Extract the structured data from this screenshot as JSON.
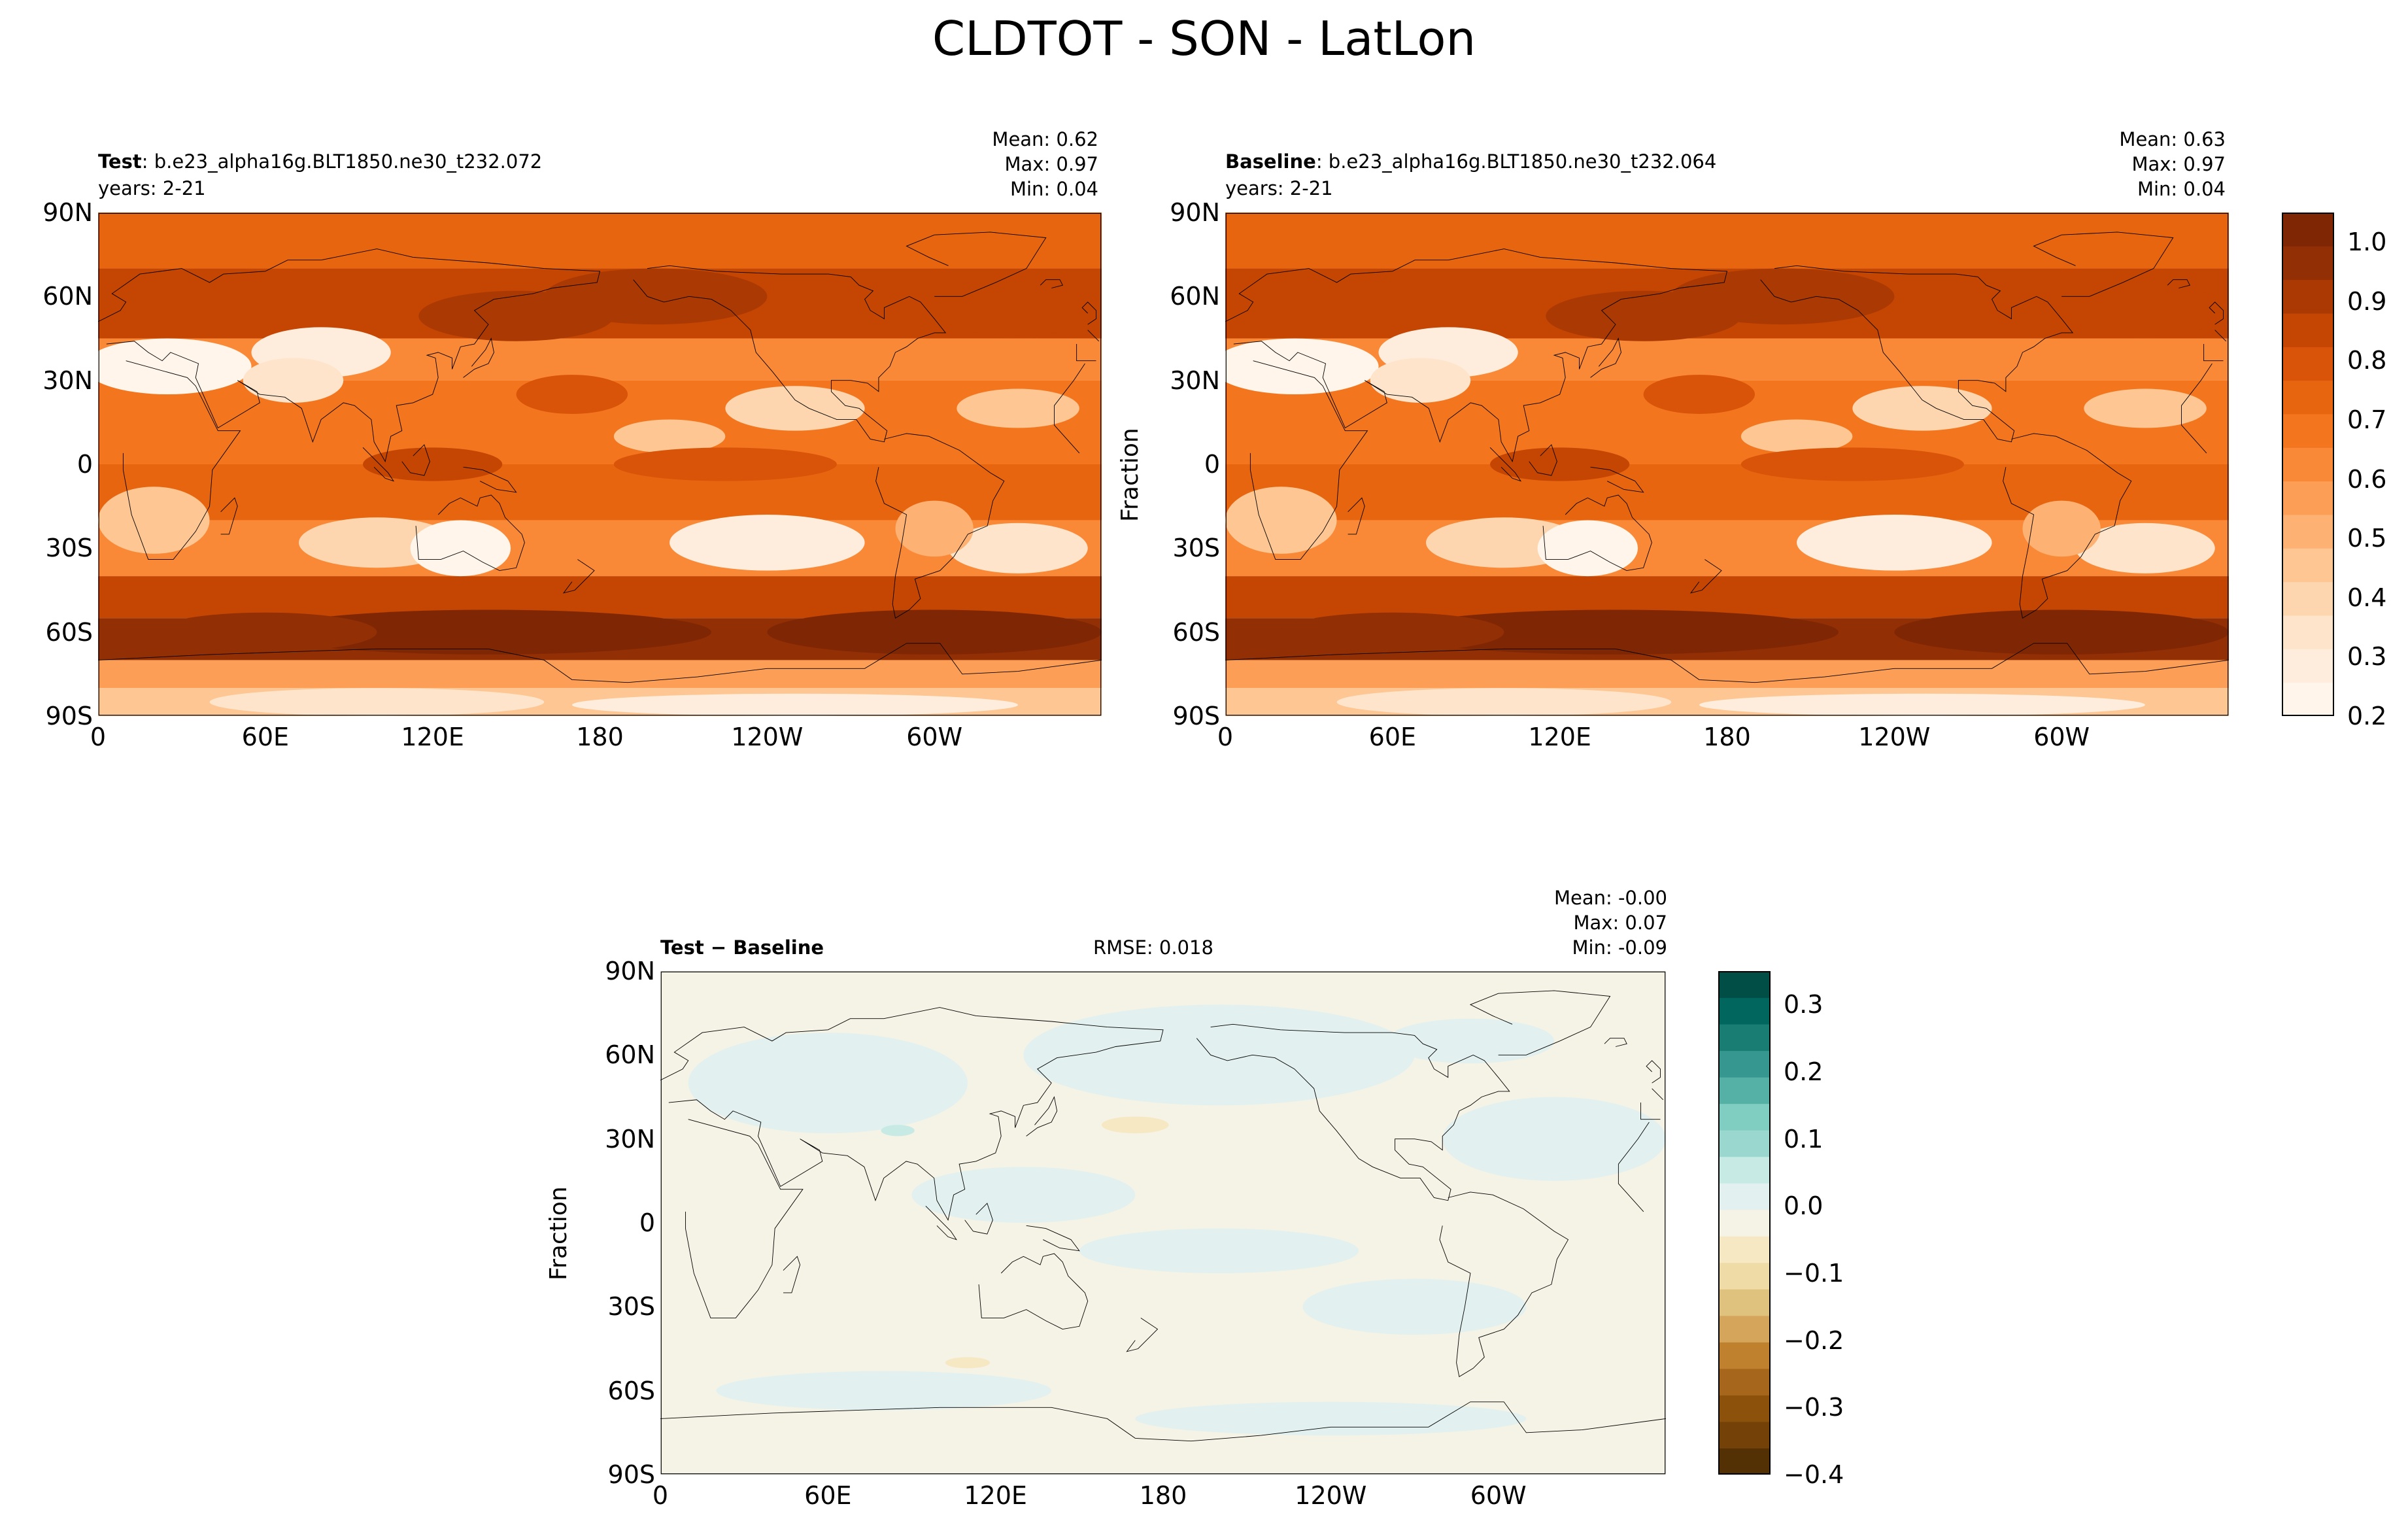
{
  "title": "CLDTOT - SON - LatLon",
  "ylabel": "Fraction",
  "x_ticks": [
    "0",
    "60E",
    "120E",
    "180",
    "120W",
    "60W"
  ],
  "y_ticks": [
    "90N",
    "60N",
    "30N",
    "0",
    "30S",
    "60S",
    "90S"
  ],
  "panels": {
    "test": {
      "label": "Test",
      "case": ": b.e23_alpha16g.BLT1850.ne30_t232.072",
      "years": "years: 2-21",
      "mean": "Mean:  0.62",
      "max": "Max:  0.97",
      "min": "Min:  0.04"
    },
    "baseline": {
      "label": "Baseline",
      "case": ": b.e23_alpha16g.BLT1850.ne30_t232.064",
      "years": "years: 2-21",
      "mean": "Mean:  0.63",
      "max": "Max:  0.97",
      "min": "Min:  0.04"
    },
    "diff": {
      "label": "Test − Baseline",
      "rmse": "RMSE: 0.018",
      "mean": "Mean: -0.00",
      "max": "Max:  0.07",
      "min": "Min: -0.09"
    }
  },
  "colorbars": {
    "main": {
      "ticks": [
        "1.0",
        "0.9",
        "0.8",
        "0.7",
        "0.6",
        "0.5",
        "0.4",
        "0.3",
        "0.2"
      ],
      "colors": [
        "#fff5eb",
        "#feeddc",
        "#fee4ca",
        "#fdd6af",
        "#fdc692",
        "#fdb173",
        "#fd9e56",
        "#fa8937",
        "#f3761f",
        "#e8650f",
        "#d95408",
        "#c54503",
        "#ab3903",
        "#922f04",
        "#7f2704"
      ]
    },
    "diff": {
      "ticks": [
        "0.3",
        "0.2",
        "0.1",
        "0.0",
        "−0.1",
        "−0.2",
        "−0.3",
        "−0.4"
      ],
      "colors": [
        "#543005",
        "#744108",
        "#8c510a",
        "#a6661c",
        "#bf812d",
        "#d4a55b",
        "#dfc27d",
        "#efdba5",
        "#f6e8c3",
        "#f5f2e6",
        "#e2f1ef",
        "#c7eae5",
        "#9ad8cf",
        "#80cdc1",
        "#55b0a6",
        "#35978f",
        "#1a7d74",
        "#01665e",
        "#004e45"
      ]
    }
  },
  "chart_data": [
    {
      "type": "heatmap",
      "title": "Test : b.e23_alpha16g.BLT1850.ne30_t232.072",
      "subtitle": "years: 2-21",
      "variable": "CLDTOT",
      "ylabel": "Fraction",
      "x_ticks": [
        "0",
        "60E",
        "120E",
        "180",
        "120W",
        "60W"
      ],
      "y_ticks": [
        "90N",
        "60N",
        "30N",
        "0",
        "30S",
        "60S",
        "90S"
      ],
      "stats": {
        "mean": 0.62,
        "max": 0.97,
        "min": 0.04
      },
      "colorbar_range": [
        0.2,
        1.05
      ],
      "colormap": "Oranges"
    },
    {
      "type": "heatmap",
      "title": "Baseline : b.e23_alpha16g.BLT1850.ne30_t232.064",
      "subtitle": "years: 2-21",
      "variable": "CLDTOT",
      "ylabel": "Fraction",
      "x_ticks": [
        "0",
        "60E",
        "120E",
        "180",
        "120W",
        "60W"
      ],
      "y_ticks": [
        "90N",
        "60N",
        "30N",
        "0",
        "30S",
        "60S",
        "90S"
      ],
      "stats": {
        "mean": 0.63,
        "max": 0.97,
        "min": 0.04
      },
      "colorbar_range": [
        0.2,
        1.05
      ],
      "colormap": "Oranges"
    },
    {
      "type": "heatmap",
      "title": "Test − Baseline",
      "ylabel": "Fraction",
      "x_ticks": [
        "0",
        "60E",
        "120E",
        "180",
        "120W",
        "60W"
      ],
      "y_ticks": [
        "90N",
        "60N",
        "30N",
        "0",
        "30S",
        "60S",
        "90S"
      ],
      "stats": {
        "mean": -0.0,
        "max": 0.07,
        "min": -0.09,
        "rmse": 0.018
      },
      "colorbar_range": [
        -0.4,
        0.35
      ],
      "colormap": "BrBG"
    }
  ]
}
